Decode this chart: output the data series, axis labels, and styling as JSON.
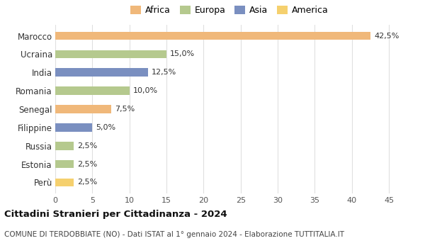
{
  "countries": [
    "Marocco",
    "Ucraina",
    "India",
    "Romania",
    "Senegal",
    "Filippine",
    "Russia",
    "Estonia",
    "Perù"
  ],
  "values": [
    42.5,
    15.0,
    12.5,
    10.0,
    7.5,
    5.0,
    2.5,
    2.5,
    2.5
  ],
  "labels": [
    "42,5%",
    "15,0%",
    "12,5%",
    "10,0%",
    "7,5%",
    "5,0%",
    "2,5%",
    "2,5%",
    "2,5%"
  ],
  "colors": [
    "#f0b87a",
    "#b5c98e",
    "#7a8fc0",
    "#b5c98e",
    "#f0b87a",
    "#7a8fc0",
    "#b5c98e",
    "#b5c98e",
    "#f5d06e"
  ],
  "legend": [
    {
      "label": "Africa",
      "color": "#f0b87a"
    },
    {
      "label": "Europa",
      "color": "#b5c98e"
    },
    {
      "label": "Asia",
      "color": "#7a8fc0"
    },
    {
      "label": "America",
      "color": "#f5d06e"
    }
  ],
  "xlim": [
    0,
    47
  ],
  "xticks": [
    0,
    5,
    10,
    15,
    20,
    25,
    30,
    35,
    40,
    45
  ],
  "title": "Cittadini Stranieri per Cittadinanza - 2024",
  "subtitle": "COMUNE DI TERDOBBIATE (NO) - Dati ISTAT al 1° gennaio 2024 - Elaborazione TUTTITALIA.IT",
  "background_color": "#ffffff",
  "grid_color": "#e0e0e0",
  "bar_height": 0.45
}
